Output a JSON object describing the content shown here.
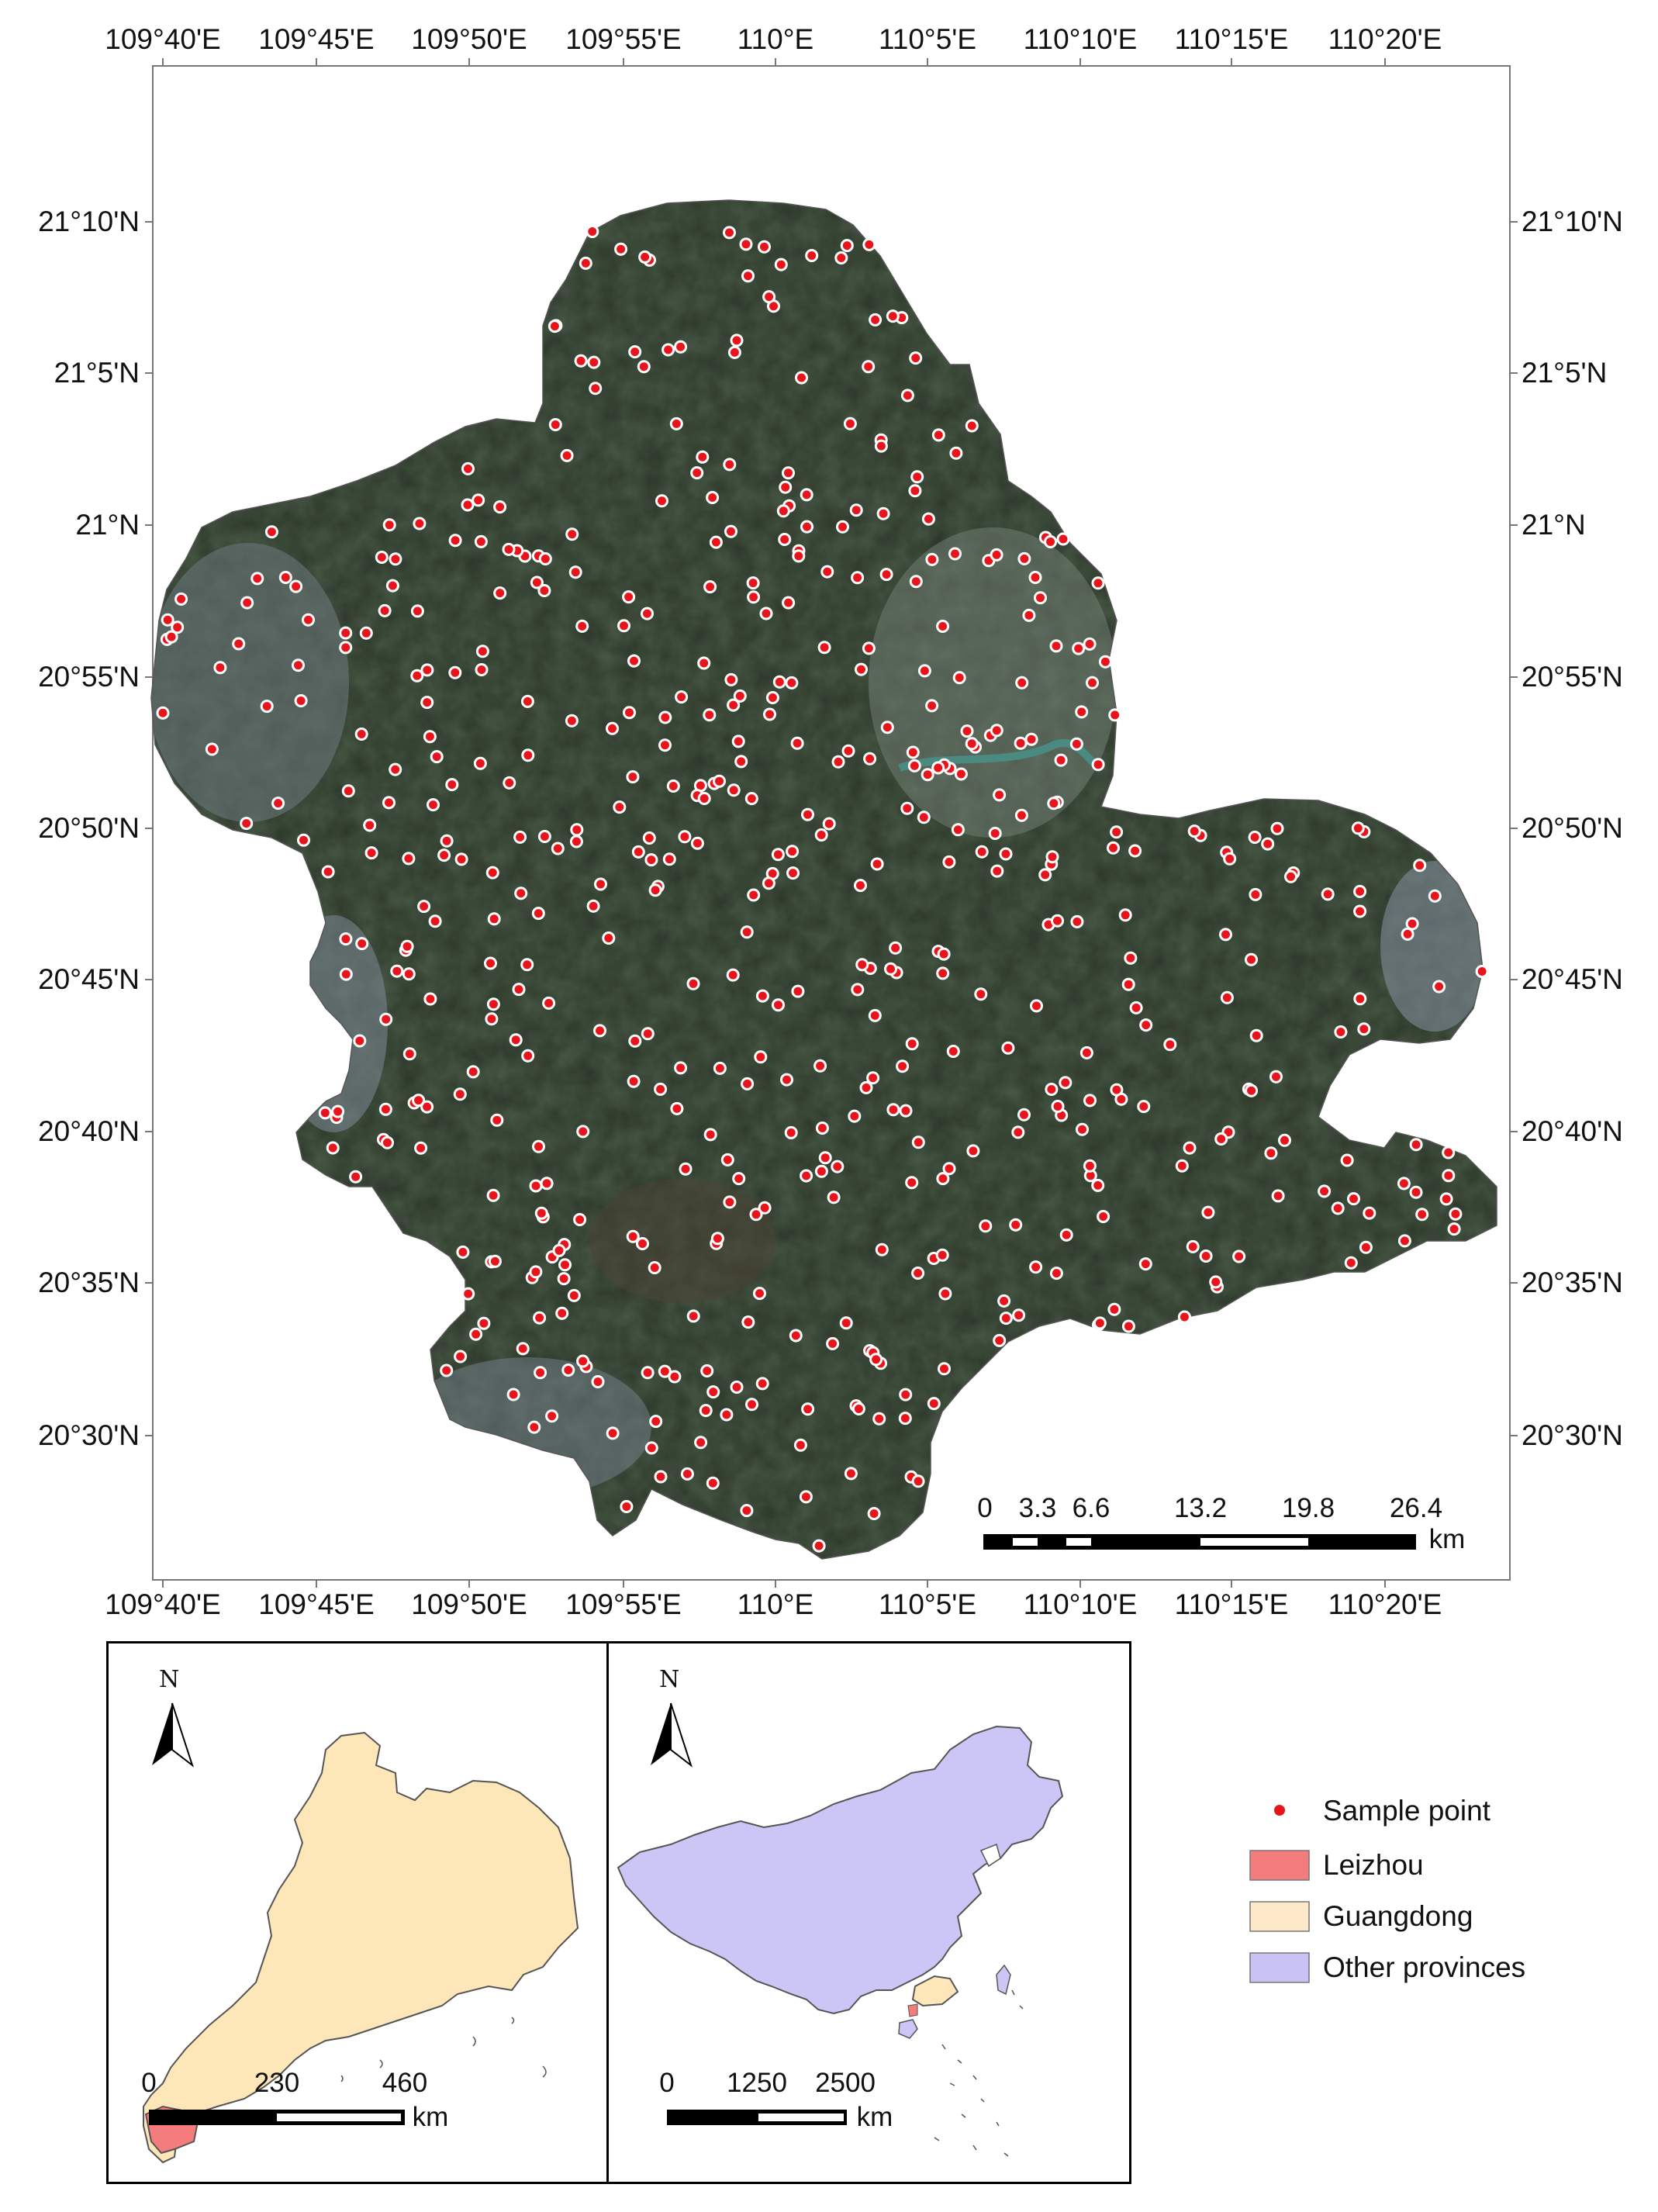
{
  "main_map": {
    "top_labels": [
      "109°40'E",
      "109°45'E",
      "109°50'E",
      "109°55'E",
      "110°E",
      "110°5'E",
      "110°10'E",
      "110°15'E",
      "110°20'E"
    ],
    "bottom_labels": [
      "109°40'E",
      "109°45'E",
      "109°50'E",
      "109°55'E",
      "110°E",
      "110°5'E",
      "110°10'E",
      "110°15'E",
      "110°20'E"
    ],
    "left_labels": [
      "21°10'N",
      "21°5'N",
      "21°N",
      "20°55'N",
      "20°50'N",
      "20°45'N",
      "20°40'N",
      "20°35'N",
      "20°30'N"
    ],
    "right_labels": [
      "21°10'N",
      "21°5'N",
      "21°N",
      "20°55'N",
      "20°50'N",
      "20°45'N",
      "20°40'N",
      "20°35'N",
      "20°30'N"
    ],
    "scale_bar": {
      "ticks": [
        "0",
        "3.3",
        "6.6",
        "13.2",
        "19.8",
        "26.4"
      ],
      "unit": "km"
    }
  },
  "inset_guangdong": {
    "north": "N",
    "scale_bar": {
      "ticks": [
        "0",
        "230",
        "460"
      ],
      "unit": "km"
    }
  },
  "inset_china": {
    "north": "N",
    "scale_bar": {
      "ticks": [
        "0",
        "1250",
        "2500"
      ],
      "unit": "km"
    }
  },
  "legend": {
    "items": [
      {
        "label": "Sample point",
        "color": "#e8141b"
      },
      {
        "label": "Leizhou",
        "color": "#f47c7c"
      },
      {
        "label": "Guangdong",
        "color": "#fde8c8"
      },
      {
        "label": "Other provinces",
        "color": "#c9c3f5"
      }
    ]
  },
  "colors": {
    "study_area": "#2e3a2c",
    "sample_point": "#e8141b",
    "guangdong_fill": "#fde6b8",
    "china_fill": "#ccc6f6",
    "leizhou_fill": "#f47c7c"
  }
}
